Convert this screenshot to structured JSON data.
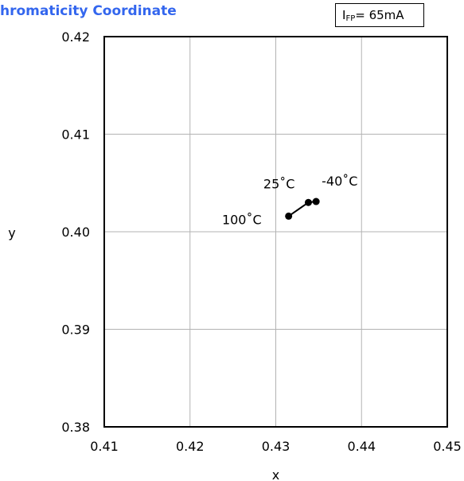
{
  "chart_data": {
    "type": "line",
    "title": "hromaticity Coordinate",
    "xlabel": "x",
    "ylabel": "y",
    "xlim": [
      0.41,
      0.45
    ],
    "ylim": [
      0.38,
      0.42
    ],
    "xticks": [
      "0.41",
      "0.42",
      "0.43",
      "0.44",
      "0.45"
    ],
    "yticks": [
      "0.38",
      "0.39",
      "0.40",
      "0.41",
      "0.42"
    ],
    "grid": true,
    "condition": {
      "symbol": "I",
      "subscript": "FP",
      "value": "= 65mA"
    },
    "series": [
      {
        "points": [
          {
            "x": 0.4315,
            "y": 0.4016,
            "label": "100˚C"
          },
          {
            "x": 0.4338,
            "y": 0.403,
            "label": "25˚C"
          },
          {
            "x": 0.4347,
            "y": 0.4031,
            "label": "-40˚C"
          }
        ],
        "color": "#000000"
      }
    ]
  }
}
